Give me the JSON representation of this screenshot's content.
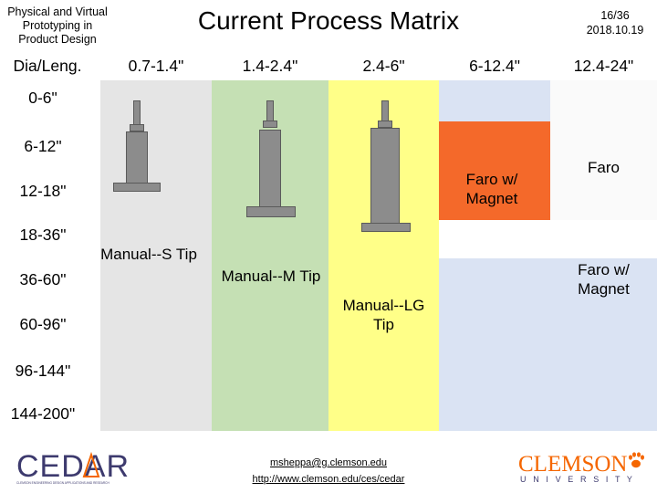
{
  "header": {
    "course_line1": "Physical and Virtual",
    "course_line2": "Prototyping in",
    "course_line3": "Product Design",
    "title": "Current Process Matrix",
    "page": "16/36",
    "date": "2018.10.19"
  },
  "matrix": {
    "corner_label": "Dia/Leng.",
    "columns": [
      "0.7-1.4\"",
      "1.4-2.4\"",
      "2.4-6\"",
      "6-12.4\"",
      "12.4-24\""
    ],
    "rows": [
      "0-6\"",
      "6-12\"",
      "12-18\"",
      "18-36\"",
      "36-60\"",
      "60-96\"",
      "96-144\"",
      "144-200\""
    ],
    "cells": {
      "manual_s": "Manual--S Tip",
      "manual_m": "Manual--M Tip",
      "manual_lg_line1": "Manual--LG",
      "manual_lg_line2": "Tip",
      "faro_magnet_a_line1": "Faro w/",
      "faro_magnet_a_line2": "Magnet",
      "faro": "Faro",
      "faro_magnet_b_line1": "Faro w/",
      "faro_magnet_b_line2": "Magnet"
    },
    "colors": {
      "manual_s": "#e5e5e5",
      "manual_m": "#c5e0b4",
      "manual_lg": "#ffff88",
      "light_blue": "#dae3f3",
      "orange": "#f4692a",
      "tool_gray": "#8c8c8c"
    }
  },
  "footer": {
    "email": "msheppa@g.clemson.edu",
    "url": "http://www.clemson.edu/ces/cedar",
    "cedar_logo_text": "CEDAR",
    "cedar_logo_subtext": "CLEMSON ENGINEERING DESIGN APPLICATIONS AND RESEARCH",
    "clemson_logo_text": "CLEMSON",
    "clemson_logo_subtext": "U N I V E R S I T Y",
    "cedar_color": "#3d3a6e",
    "clemson_color": "#f56600"
  }
}
